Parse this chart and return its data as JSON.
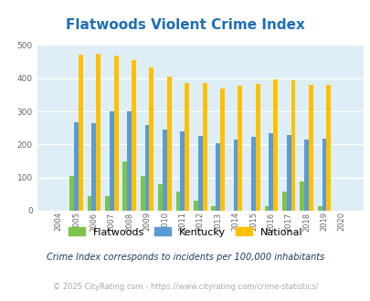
{
  "title": "Flatwoods Violent Crime Index",
  "years": [
    2004,
    2005,
    2006,
    2007,
    2008,
    2009,
    2010,
    2011,
    2012,
    2013,
    2014,
    2015,
    2016,
    2017,
    2018,
    2019,
    2020
  ],
  "flatwoods": [
    0,
    105,
    43,
    43,
    148,
    105,
    80,
    58,
    30,
    15,
    0,
    0,
    15,
    58,
    88,
    15,
    0
  ],
  "kentucky": [
    0,
    267,
    265,
    300,
    300,
    260,
    245,
    240,
    225,
    203,
    215,
    222,
    235,
    228,
    215,
    218,
    0
  ],
  "national": [
    0,
    470,
    473,
    468,
    455,
    432,
    405,
    387,
    387,
    368,
    378,
    384,
    398,
    394,
    380,
    380,
    0
  ],
  "colors": {
    "flatwoods": "#7ec44a",
    "kentucky": "#5b9bd5",
    "national": "#ffc000"
  },
  "bg_color": "#deeef6",
  "ylim": [
    0,
    500
  ],
  "yticks": [
    0,
    100,
    200,
    300,
    400,
    500
  ],
  "title_color": "#1f6eb5",
  "title_fontsize": 11,
  "legend_labels": [
    "Flatwoods",
    "Kentucky",
    "National"
  ],
  "footnote1": "Crime Index corresponds to incidents per 100,000 inhabitants",
  "footnote2": "© 2025 CityRating.com - https://www.cityrating.com/crime-statistics/",
  "footnote1_color": "#1a3a5c",
  "footnote2_color": "#aaaaaa"
}
